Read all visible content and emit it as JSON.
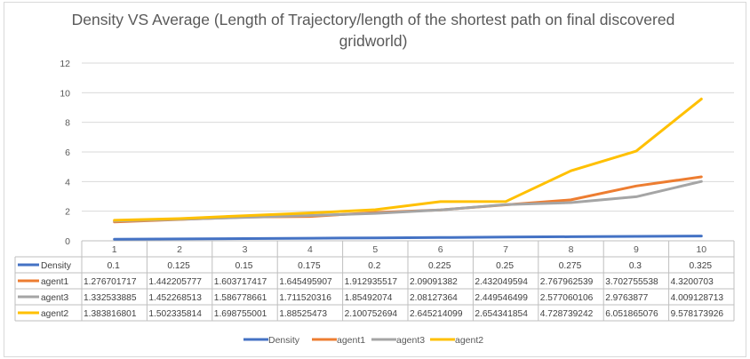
{
  "chart_data": {
    "type": "line",
    "title": "Density VS Average (Length of Trajectory/length of the shortest path on final discovered gridworld)",
    "title_lines": [
      "Density VS Average (Length of Trajectory/length of the shortest path on final discovered",
      "gridworld)"
    ],
    "categories": [
      "1",
      "2",
      "3",
      "4",
      "5",
      "6",
      "7",
      "8",
      "9",
      "10"
    ],
    "ylim": [
      0,
      12
    ],
    "yticks": [
      "0",
      "2",
      "4",
      "6",
      "8",
      "10",
      "12"
    ],
    "grid": true,
    "legend_position": "bottom",
    "data_table": true,
    "series": [
      {
        "name": "Density",
        "color": "#4472c4",
        "values": [
          0.1,
          0.125,
          0.15,
          0.175,
          0.2,
          0.225,
          0.25,
          0.275,
          0.3,
          0.325
        ],
        "labels": [
          "0.1",
          "0.125",
          "0.15",
          "0.175",
          "0.2",
          "0.225",
          "0.25",
          "0.275",
          "0.3",
          "0.325"
        ]
      },
      {
        "name": "agent1",
        "color": "#ed7d31",
        "values": [
          1.276701717,
          1.442205777,
          1.603717417,
          1.645495907,
          1.912935517,
          2.09091382,
          2.432049594,
          2.767962539,
          3.702755538,
          4.3200703
        ],
        "labels": [
          "1.276701717",
          "1.442205777",
          "1.603717417",
          "1.645495907",
          "1.912935517",
          "2.09091382",
          "2.432049594",
          "2.767962539",
          "3.702755538",
          "4.3200703"
        ]
      },
      {
        "name": "agent3",
        "color": "#a5a5a5",
        "values": [
          1.332533885,
          1.452268513,
          1.586778661,
          1.711520316,
          1.85492074,
          2.08127364,
          2.449546499,
          2.577060106,
          2.9763877,
          4.009128713
        ],
        "labels": [
          "1.332533885",
          "1.452268513",
          "1.586778661",
          "1.711520316",
          "1.85492074",
          "2.08127364",
          "2.449546499",
          "2.577060106",
          "2.9763877",
          "4.009128713"
        ]
      },
      {
        "name": "agent2",
        "color": "#ffc000",
        "values": [
          1.383816801,
          1.502335814,
          1.698755001,
          1.88525473,
          2.100752694,
          2.645214099,
          2.654341854,
          4.728739242,
          6.051865076,
          9.578173926
        ],
        "labels": [
          "1.383816801",
          "1.502335814",
          "1.698755001",
          "1.88525473",
          "2.100752694",
          "2.645214099",
          "2.654341854",
          "4.728739242",
          "6.051865076",
          "9.578173926"
        ]
      }
    ]
  }
}
